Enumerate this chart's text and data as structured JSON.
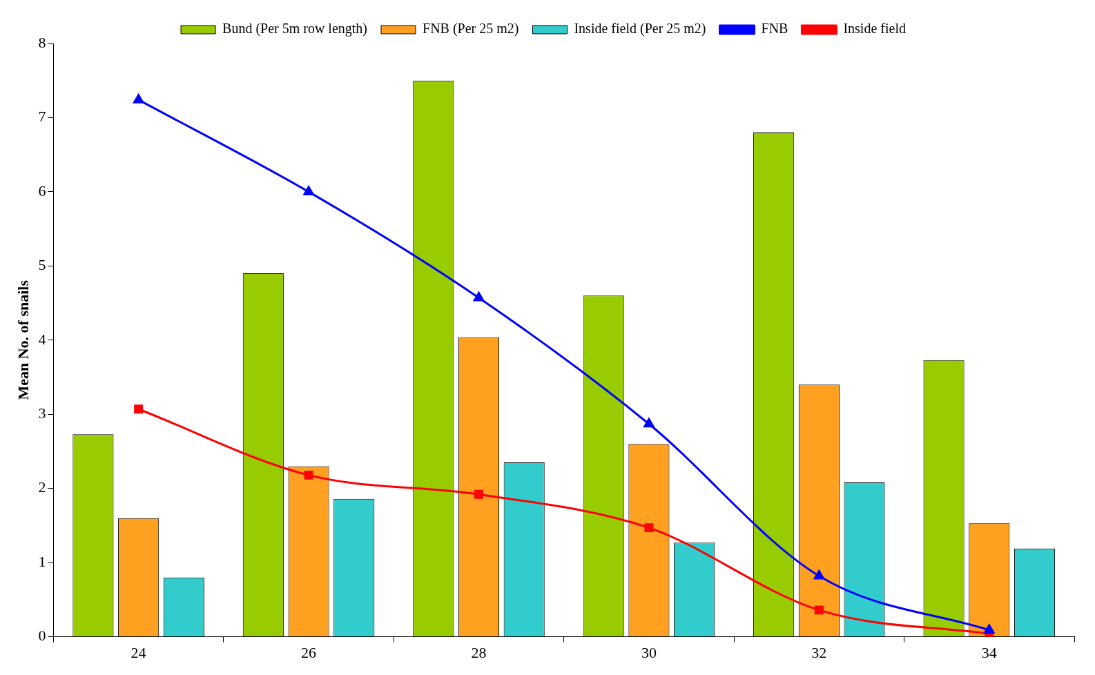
{
  "chart_data": {
    "type": "bar",
    "ylabel": "Mean No. of snails",
    "categories": [
      "24",
      "26",
      "28",
      "30",
      "32",
      "34"
    ],
    "series": [
      {
        "name": "Bund (Per 5m row length)",
        "color": "#99cc00",
        "values": [
          2.73,
          4.9,
          7.5,
          4.6,
          6.8,
          3.73
        ]
      },
      {
        "name": "FNB (Per 25 m2)",
        "color": "#ffa020",
        "values": [
          1.6,
          2.3,
          4.04,
          2.6,
          3.4,
          1.53
        ]
      },
      {
        "name": "Inside field (Per 25 m2)",
        "color": "#33cccc",
        "values": [
          0.8,
          1.86,
          2.35,
          1.27,
          2.08,
          1.19
        ]
      },
      {
        "name": "FNB",
        "type": "line",
        "color": "#0000ff",
        "marker": "triangle",
        "values": [
          7.24,
          6.0,
          4.57,
          2.87,
          0.82,
          0.09
        ]
      },
      {
        "name": "Inside field",
        "type": "line",
        "color": "#ff0000",
        "marker": "square",
        "values": [
          3.07,
          2.18,
          1.92,
          1.47,
          0.36,
          0.04
        ]
      }
    ],
    "ylim": [
      0,
      8
    ],
    "yticks": [
      0,
      1,
      2,
      3,
      4,
      5,
      6,
      7,
      8
    ],
    "grid": false,
    "legend": "top"
  }
}
